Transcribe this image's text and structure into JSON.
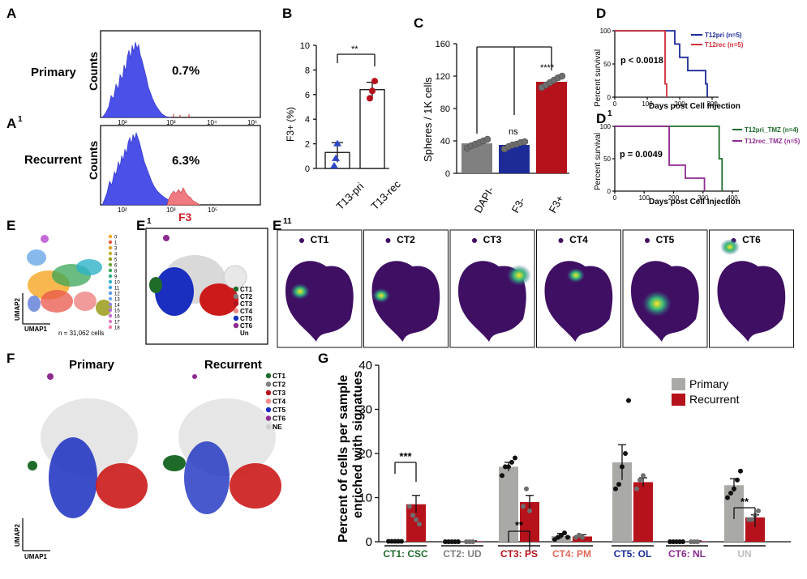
{
  "panels": {
    "A": {
      "letter": "A",
      "label": "Primary",
      "ylabel": "Counts",
      "value": "0.7%"
    },
    "A1": {
      "letter": "A",
      "sup": "1",
      "label": "Recurrent",
      "ylabel": "Counts",
      "value": "6.3%",
      "marker": "F3"
    },
    "hist_ticks": [
      "10²",
      "10³",
      "10⁴",
      "10⁵"
    ],
    "B": {
      "letter": "B",
      "ylabel": "F3+ (%)",
      "sig": "**",
      "xticks": [
        "T13-pri",
        "T13-rec"
      ],
      "yticks": [
        "0",
        "2",
        "4",
        "6",
        "8",
        "10"
      ]
    },
    "C": {
      "letter": "C",
      "ylabel": "Spheres / 1K cells",
      "sig_a": "ns",
      "sig_b": "****",
      "xticks": [
        "DAPI-",
        "F3-",
        "F3+"
      ],
      "yticks": [
        "0",
        "40",
        "80",
        "120",
        "160"
      ]
    },
    "D": {
      "letter": "D",
      "ylabel": "Percent survival",
      "xlabel": "Days post Cell Injection",
      "pval": "p < 0.0018",
      "legend": [
        "T12pri (n=5)",
        "T12rec (n=5)"
      ],
      "yticks": [
        "0",
        "50",
        "100"
      ],
      "xticks": [
        "0",
        "100",
        "200",
        "300"
      ]
    },
    "D1": {
      "letter": "D",
      "sup": "1",
      "ylabel": "Percent survival",
      "xlabel": "Days post Cell Injection",
      "pval": "p = 0.0049",
      "legend": [
        "T12pri_TMZ (n=4)",
        "T12rec_TMZ (n=5)"
      ],
      "yticks": [
        "0",
        "50",
        "100"
      ],
      "xticks": [
        "0",
        "100",
        "200",
        "300",
        "400"
      ]
    },
    "E": {
      "letter": "E",
      "clusters": [
        "0",
        "1",
        "3",
        "4",
        "5",
        "6",
        "8",
        "9",
        "10",
        "11",
        "12",
        "13",
        "14",
        "15",
        "16",
        "17",
        "18"
      ],
      "axis_y": "UMAP2",
      "axis_x": "UMAP1",
      "ncells": "n = 31,062 cells"
    },
    "E1": {
      "letter": "E",
      "sup": "1",
      "legend": [
        "CT1",
        "CT2",
        "CT3",
        "CT4",
        "CT5",
        "CT6",
        "Un"
      ]
    },
    "E11": {
      "letter": "E",
      "sup": "11",
      "titles": [
        "CT1",
        "CT2",
        "CT3",
        "CT4",
        "CT5",
        "CT6"
      ]
    },
    "F": {
      "letter": "F",
      "titles": [
        "Primary",
        "Recurrent"
      ],
      "legend": [
        "CT1",
        "CT2",
        "CT3",
        "CT4",
        "CT5",
        "CT6",
        "NE"
      ],
      "axis_y": "UMAP2",
      "axis_x": "UMAP1"
    },
    "G": {
      "letter": "G",
      "ylabel_1": "Percent of cells per sample",
      "ylabel_2": "enriched with signatues",
      "legend": [
        "Primary",
        "Recurrent"
      ],
      "sig": [
        "***",
        "**",
        "**"
      ],
      "yticks": [
        "0",
        "10",
        "20",
        "30",
        "40"
      ]
    }
  },
  "colors": {
    "hist": "#4b50e8",
    "red": "#b5121b",
    "blue": "#1d2b99",
    "grey": "#7f7f7f",
    "green": "#1f6b2a",
    "purple": "#8e2b8f",
    "primary_grey": "#a9aaa6"
  },
  "chart_data": [
    {
      "type": "histogram",
      "title": "Primary",
      "value_label": "0.7%",
      "xlabel": "",
      "ylabel": "Counts",
      "x_scale": "log",
      "xticks": [
        "10²",
        "10³",
        "10⁴",
        "10⁵"
      ]
    },
    {
      "type": "histogram",
      "title": "Recurrent",
      "value_label": "6.3%",
      "xlabel": "F3",
      "ylabel": "Counts",
      "x_scale": "log",
      "xticks": [
        "10²",
        "10³",
        "10⁴",
        "10⁵"
      ]
    },
    {
      "type": "bar",
      "title": "B",
      "categories": [
        "T13-pri",
        "T13-rec"
      ],
      "values": [
        1.3,
        6.4
      ],
      "errors": [
        0.8,
        0.6
      ],
      "points": [
        [
          0.2,
          0.8,
          2.0
        ],
        [
          5.7,
          6.3,
          7.1
        ]
      ],
      "ylabel": "F3+ (%)",
      "ylim": [
        0,
        10
      ]
    },
    {
      "type": "bar",
      "title": "C",
      "categories": [
        "DAPI-",
        "F3-",
        "F3+"
      ],
      "values": [
        37,
        35,
        113
      ],
      "errors": [
        3,
        3,
        4
      ],
      "points": [
        [
          31,
          34,
          36,
          38,
          40,
          42
        ],
        [
          30,
          33,
          35,
          36,
          38,
          39
        ],
        [
          106,
          109,
          112,
          115,
          118,
          120
        ]
      ],
      "ylabel": "Spheres / 1K cells",
      "ylim": [
        0,
        160
      ]
    },
    {
      "type": "line",
      "title": "D",
      "xlabel": "Days post Cell Injection",
      "ylabel": "Percent survival",
      "xlim": [
        0,
        300
      ],
      "ylim": [
        0,
        100
      ],
      "series": [
        {
          "name": "T12pri (n=5)",
          "x": [
            0,
            175,
            185,
            200,
            225,
            280,
            285
          ],
          "y": [
            100,
            100,
            80,
            60,
            40,
            20,
            0
          ]
        },
        {
          "name": "T12rec (n=5)",
          "x": [
            0,
            150,
            155,
            160
          ],
          "y": [
            100,
            100,
            20,
            0
          ]
        }
      ]
    },
    {
      "type": "line",
      "title": "D1",
      "xlabel": "Days post Cell Injection",
      "ylabel": "Percent survival",
      "xlim": [
        0,
        400
      ],
      "ylim": [
        0,
        100
      ],
      "series": [
        {
          "name": "T12pri_TMZ (n=4)",
          "x": [
            0,
            340,
            355,
            365
          ],
          "y": [
            100,
            100,
            50,
            0
          ]
        },
        {
          "name": "T12rec_TMZ (n=5)",
          "x": [
            0,
            180,
            185,
            240,
            300,
            305
          ],
          "y": [
            100,
            100,
            40,
            20,
            20,
            0
          ]
        }
      ]
    },
    {
      "type": "bar",
      "title": "G",
      "categories": [
        "CT1: CSC",
        "CT2: UD",
        "CT3: PS",
        "CT4: PM",
        "CT5: OL",
        "CT6: NL",
        "UN"
      ],
      "ylabel": "Percent of cells per sample enriched with signatues",
      "ylim": [
        0,
        40
      ],
      "series": [
        {
          "name": "Primary",
          "values": [
            0.1,
            0.1,
            17,
            1.3,
            18,
            0.1,
            12.8
          ],
          "errors": [
            0.1,
            0.1,
            1,
            0.6,
            4,
            0.1,
            1.5
          ]
        },
        {
          "name": "Recurrent",
          "values": [
            8.5,
            0.1,
            9,
            1.2,
            13.5,
            0.1,
            5.5
          ],
          "errors": [
            2,
            0.1,
            1.5,
            0.4,
            1,
            0.1,
            0.6
          ]
        }
      ]
    }
  ]
}
